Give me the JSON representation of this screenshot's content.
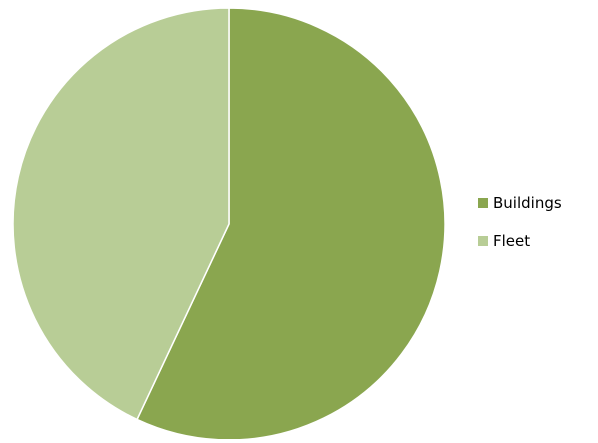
{
  "chart_data": {
    "type": "pie",
    "title": "",
    "categories": [
      "Buildings",
      "Fleet"
    ],
    "values": [
      57,
      43
    ],
    "colors": [
      "#8aa64f",
      "#b8cd96"
    ],
    "start_angle_deg": 0,
    "direction": "clockwise",
    "legend_position": "right"
  }
}
